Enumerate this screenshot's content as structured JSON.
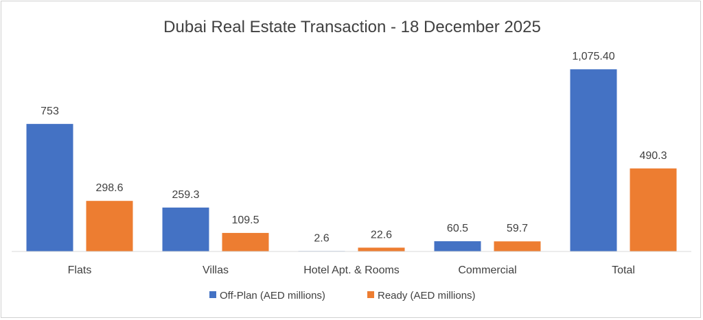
{
  "chart_data": {
    "type": "bar",
    "title": "Dubai Real Estate Transaction - 18 December 2025",
    "categories": [
      "Flats",
      "Villas",
      "Hotel Apt. & Rooms",
      "Commercial",
      "Total"
    ],
    "series": [
      {
        "name": "Off-Plan (AED millions)",
        "color": "#4472C4",
        "values": [
          753,
          259.3,
          2.6,
          60.5,
          1075.4
        ],
        "labels": [
          "753",
          "259.3",
          "2.6",
          "60.5",
          "1,075.40"
        ]
      },
      {
        "name": "Ready (AED millions)",
        "color": "#ED7D31",
        "values": [
          298.6,
          109.5,
          22.6,
          59.7,
          490.3
        ],
        "labels": [
          "298.6",
          "109.5",
          "22.6",
          "59.7",
          "490.3"
        ]
      }
    ],
    "ylim": [
      0,
      1080
    ],
    "grid": false,
    "legend_position": "bottom"
  }
}
